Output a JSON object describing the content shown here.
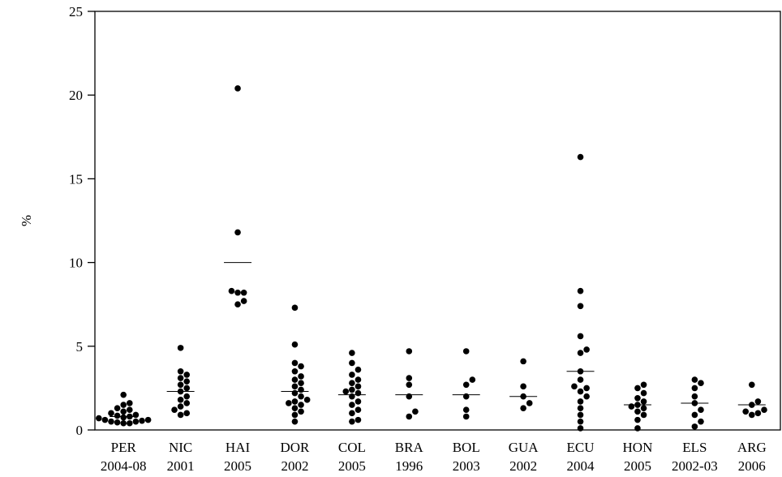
{
  "chart_data": {
    "type": "scatter",
    "ylabel": "%",
    "ylim": [
      0,
      25
    ],
    "yticks": [
      "0",
      "5",
      "10",
      "15",
      "20",
      "25"
    ],
    "grid": false,
    "categories": [
      {
        "code": "PER",
        "year": "2004-08",
        "mean": 0.8,
        "points": [
          0.4,
          0.4,
          0.45,
          0.5,
          0.5,
          0.55,
          0.6,
          0.6,
          0.7,
          0.75,
          0.8,
          0.85,
          0.9,
          1.0,
          1.1,
          1.2,
          1.3,
          1.5,
          1.6,
          2.1
        ]
      },
      {
        "code": "NIC",
        "year": "2001",
        "mean": 2.3,
        "points": [
          0.9,
          1.0,
          1.2,
          1.4,
          1.6,
          1.8,
          2.0,
          2.3,
          2.5,
          2.7,
          2.9,
          3.1,
          3.3,
          3.5,
          4.9
        ]
      },
      {
        "code": "HAI",
        "year": "2005",
        "mean": 10.0,
        "points": [
          7.5,
          7.7,
          8.2,
          8.2,
          8.3,
          11.8,
          20.4
        ]
      },
      {
        "code": "DOR",
        "year": "2002",
        "mean": 2.3,
        "points": [
          0.5,
          0.9,
          1.1,
          1.3,
          1.5,
          1.6,
          1.7,
          1.8,
          2.0,
          2.2,
          2.4,
          2.6,
          2.8,
          3.0,
          3.2,
          3.5,
          3.8,
          4.0,
          5.1,
          7.3
        ]
      },
      {
        "code": "COL",
        "year": "2005",
        "mean": 2.1,
        "points": [
          0.5,
          0.6,
          1.0,
          1.2,
          1.5,
          1.7,
          2.0,
          2.2,
          2.3,
          2.4,
          2.6,
          2.8,
          3.0,
          3.3,
          3.6,
          4.0,
          4.6
        ]
      },
      {
        "code": "BRA",
        "year": "1996",
        "mean": 2.1,
        "points": [
          0.8,
          1.1,
          2.0,
          2.7,
          3.1,
          4.7
        ]
      },
      {
        "code": "BOL",
        "year": "2003",
        "mean": 2.1,
        "points": [
          0.8,
          1.2,
          2.0,
          2.7,
          3.0,
          4.7
        ]
      },
      {
        "code": "GUA",
        "year": "2002",
        "mean": 2.0,
        "points": [
          1.3,
          1.6,
          2.0,
          2.6,
          4.1
        ]
      },
      {
        "code": "ECU",
        "year": "2004",
        "mean": 3.5,
        "points": [
          0.1,
          0.5,
          0.9,
          1.3,
          1.7,
          2.0,
          2.3,
          2.5,
          2.6,
          3.0,
          3.5,
          4.6,
          4.8,
          5.6,
          7.4,
          8.3,
          16.3
        ]
      },
      {
        "code": "HON",
        "year": "2005",
        "mean": 1.5,
        "points": [
          0.1,
          0.6,
          0.9,
          1.1,
          1.3,
          1.4,
          1.5,
          1.7,
          1.9,
          2.2,
          2.5,
          2.7
        ]
      },
      {
        "code": "ELS",
        "year": "2002-03",
        "mean": 1.6,
        "points": [
          0.2,
          0.5,
          0.9,
          1.2,
          1.6,
          2.0,
          2.5,
          2.8,
          3.0
        ]
      },
      {
        "code": "ARG",
        "year": "2006",
        "mean": 1.5,
        "points": [
          0.9,
          1.0,
          1.1,
          1.2,
          1.5,
          1.7,
          2.7
        ]
      }
    ]
  }
}
